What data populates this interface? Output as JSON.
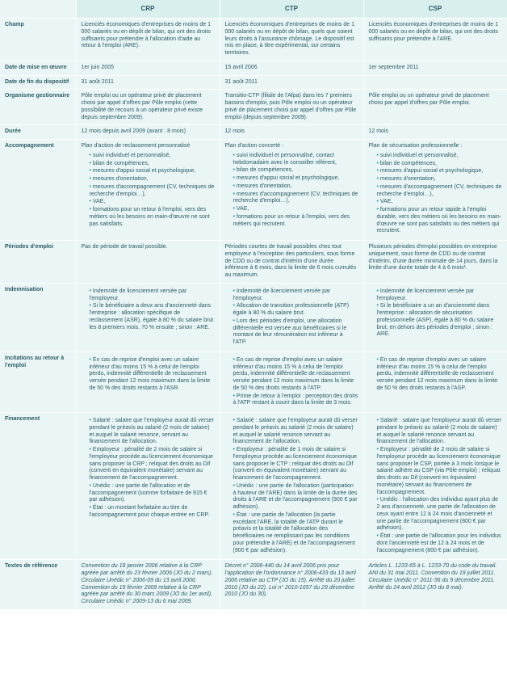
{
  "colors": {
    "table_bg": "#eaf6f5",
    "header_bg": "#d8efee",
    "text": "#2a5a66",
    "bullet": "#2aa9a0",
    "border": "#ffffff"
  },
  "columns": [
    "",
    "CRP",
    "CTP",
    "CSP"
  ],
  "rows": [
    {
      "label": "Champ",
      "crp": "Licenciés économiques d'entreprises de moins de 1 000 salariés ou en dépôt de bilan, qui ont des droits suffisants pour prétendre à l'allocation d'aide au retour à l'emploi (ARE).",
      "ctp": "Licenciés économiques d'entreprises de moins de 1 000 salariés ou en dépôt de bilan, quels que soient leurs droits à l'assurance chômage. Le dispositif est mis en place, à titre expérimental, sur certains territoires.",
      "csp": "Licenciés économiques d'entreprises de moins de 1 000 salariés ou en dépôt de bilan, qui ont des droits suffisants pour prétendre à l'ARE."
    },
    {
      "label": "Date de mise en œuvre",
      "crp": "1er juin 2005",
      "ctp": "15 avril 2006",
      "csp": "1er septembre 2011"
    },
    {
      "label": "Date de fin du dispositif",
      "crp": "31 août 2011",
      "ctp": "31 août 2011",
      "csp": ""
    },
    {
      "label": "Organisme gestionnaire",
      "crp": "Pôle emploi ou un opérateur privé de placement choisi par appel d'offres par Pôle emploi (cette possibilité de recours à un opérateur privé existe depuis septembre 2009).",
      "ctp": "Transitio-CTP (filiale de l'Afpa) dans les 7 premiers bassins d'emploi, puis Pôle emploi ou un opérateur privé de placement choisi par appel d'offres par Pôle emploi (depuis septembre 2009).",
      "csp": "Pôle emploi ou un opérateur privé de placement choisi par appel d'offres par Pôle emploi."
    },
    {
      "label": "Durée",
      "crp": "12 mois depuis avril 2009 (avant : 8 mois)",
      "ctp": "12 mois",
      "csp": "12 mois"
    },
    {
      "label": "Accompagnement",
      "crp_intro": "Plan d'action de reclassement personnalisé",
      "crp_items": [
        "suivi individuel et personnalisé,",
        "bilan de compétences,",
        "mesures d'appui social et psychologique,",
        "mesures d'orientation,",
        "mesures d'accompagnement (CV, techniques de recherche d'emploi…),",
        "VAE,",
        "formations pour un retour à l'emploi, vers des métiers où les besoins en main-d'œuvre ne sont pas satisfaits."
      ],
      "ctp_intro": "Plan d'action concerté :",
      "ctp_items": [
        "suivi individuel et personnalisé, contact hebdomadaire avec le conseiller référent,",
        "bilan de compétences,",
        "mesures d'appui social et psychologique,",
        "mesures d'orientation,",
        "mesures d'accompagnement (CV, techniques de recherche d'emploi…),",
        "VAE,",
        "formations pour un retour à l'emploi, vers des métiers qui recrutent."
      ],
      "csp_intro": "Plan de sécurisation professionnelle :",
      "csp_items": [
        "suivi individuel et personnalisé,",
        "bilan de compétences,",
        "mesures d'appui social et psychologique,",
        "mesures d'orientation,",
        "mesures d'accompagnement (CV, techniques de recherche d'emploi…),",
        "VAE,",
        "formations pour un retour rapide à l'emploi durable, vers des métiers où les besoins en main-d'œuvre ne sont pas satisfaits ou des métiers qui recrutent."
      ]
    },
    {
      "label": "Périodes d'emploi",
      "crp": "Pas de période de travail possible.",
      "ctp": "Périodes courtes de travail possibles chez tout employeur à l'exception des particuliers, sous forme de CDD ou de contrat d'intérim d'une durée inférieure à 6 mois, dans la limite de 6 mois cumulés au maximum.",
      "csp": "Plusieurs périodes d'emploi possibles en entreprise uniquement, sous forme de CDD ou de contrat d'intérim, d'une durée minimale de 14 jours, dans la limite d'une durée totale de 4 à 6 mois¹."
    },
    {
      "label": "Indemnisation",
      "crp_items": [
        "Indemnité de licenciement versée par l'employeur.",
        "Si le bénéficiaire a deux ans d'ancienneté dans l'entreprise : allocation spécifique de reclassement (ASR), égale à 80 % du salaire brut les 8 premiers mois, 70 % ensuite ; sinon : ARE."
      ],
      "ctp_items": [
        "Indemnité de licenciement versée par l'employeur.",
        "Allocation de transition professionnelle (ATP) égale à 80 % du salaire brut.",
        "Lors des périodes d'emploi, une allocation différentielle est versée aux bénéficiaires si le montant de leur rémunération est inférieur à l'ATP."
      ],
      "csp_items": [
        "Indemnité de licenciement versée par l'employeur.",
        "Si le bénéficiaire a un an d'ancienneté dans l'entreprise : allocation de sécurisation professionnelle (ASP), égale à 80 % du salaire brut, en dehors des périodes d'emploi ; sinon : ARE."
      ]
    },
    {
      "label": "Incitations au retour à l'emploi",
      "crp_items": [
        "En cas de reprise d'emploi avec un salaire inférieur d'au moins 15 % à celui de l'emploi perdu, indemnité différentielle de reclassement versée pendant 12 mois maximum dans la limite de 50 % des droits restants à l'ASR."
      ],
      "ctp_items": [
        "En cas de reprise d'emploi avec un salaire inférieur d'au moins 15 % à celui de l'emploi perdu, indemnité différentielle de reclassement versée pendant 12 mois maximum dans la limite de 50 % des droits restants à l'ATP.",
        "Prime de retour à l'emploi : perception des droits à l'ATP restant à courir dans la limite de 3 mois."
      ],
      "csp_items": [
        "En cas de reprise d'emploi avec un salaire inférieur d'au moins 15 % à celui de l'emploi perdu, indemnité différentielle de reclassement versée pendant 12 mois maximum dans la limite de 50 % des droits restants à l'ASP."
      ]
    },
    {
      "label": "Financement",
      "crp_items": [
        "Salarié : salaire que l'employeur aurait dû verser pendant le préavis au salarié (2 mois de salaire) et auquel le salarié renonce, servant au financement de l'allocation.",
        "Employeur : pénalité de 2 mois de salaire si l'employeur procède au licenciement économique sans proposer la CRP ; reliquat des droits au Dif (converti en équivalent monétaire) servant au financement de l'accompagnement.",
        "Unédic : une partie de l'allocation et de l'accompagnement (somme forfaitaire de 915 € par adhésion).",
        "État : un montant forfaitaire au titre de l'accompagnement pour chaque entrée en CRP."
      ],
      "ctp_items": [
        "Salarié : salaire que l'employeur aurait dû verser pendant le préavis au salarié (2 mois de salaire) et auquel le salarié renonce servant au financement de l'allocation.",
        "Employeur : pénalité de 1 mois de salaire si l'employeur procède au licenciement économique sans proposer le CTP ; reliquat des droits au Dif (converti en équivalent monétaire) servant au financement de l'accompagnement.",
        "Unédic : une partie de l'allocation (participation à hauteur de l'ARE) dans la limite de la durée des droits à l'ARE et de l'accompagnement (900 € par adhésion).",
        "État : une partie de l'allocation (la partie excédant l'ARE, la totalité de l'ATP durant le préavis et la totalité de l'allocation des bénéficiaires ne remplissant pas les conditions pour prétendre à l'ARE) et de l'accompagnement (900 € par adhésion)."
      ],
      "csp_items": [
        "Salarié : salaire que l'employeur aurait dû verser pendant le préavis au salarié (2 mois de salaire) et auquel le salarié renonce servant au financement de l'allocation.",
        "Employeur : pénalité de 2 mois de salaire si l'employeur procède au licenciement économique sans proposer le CSP, portée à 3 mois lorsque le salarié adhère au CSP (via Pôle emploi) ; reliquat des droits au Dif (converti en équivalent monétaire) servant au financement de l'accompagnement.",
        "Unédic : l'allocation des individus ayant plus de 2 ans d'ancienneté, une partie de l'allocation de ceux ayant entre 12 à 24 mois d'ancienneté et une partie de l'accompagnement (800 € par adhésion).",
        "État : une partie de l'allocation pour les individus dont l'ancienneté est de 12 à 24 mois et de l'accompagnement (800 € par adhésion)."
      ]
    },
    {
      "label": "Textes de référence",
      "crp": "Convention du 18 janvier 2006 relative à la CRP agréée par arrêté du 23 février 2006 (JO du 2 mars).\nCirculaire Unédic n° 2006-09 du 13 avril 2006.\nConvention du 19 février 2009 relative à la CRP agréée par arrêté du 30 mars 2009 (JO du 1er avril).\nCirculaire Unédic n° 2009-13 du 6 mai 2009.",
      "ctp": "Décret n° 2006-440 du 14 avril 2006 pris pour l'application de l'ordonnance n° 2006-433 du 13 avril 2006 relative au CTP (JO du 15).\nArrêté du 20 juillet 2010 (JO du 22).\nLoi n° 2010-1657 du 29 décembre 2010 (JO du 30).",
      "csp": "Articles L. 1233-65 à L. 1233-70 du code du travail.\nANI du 31 mai 2011.\nConvention du 19 juillet 2011.\nCirculaire Unédic n° 2011-36 du 9 décembre 2011.\nArrêté du 24 avril 2012 (JO du 8 mai)."
    }
  ]
}
